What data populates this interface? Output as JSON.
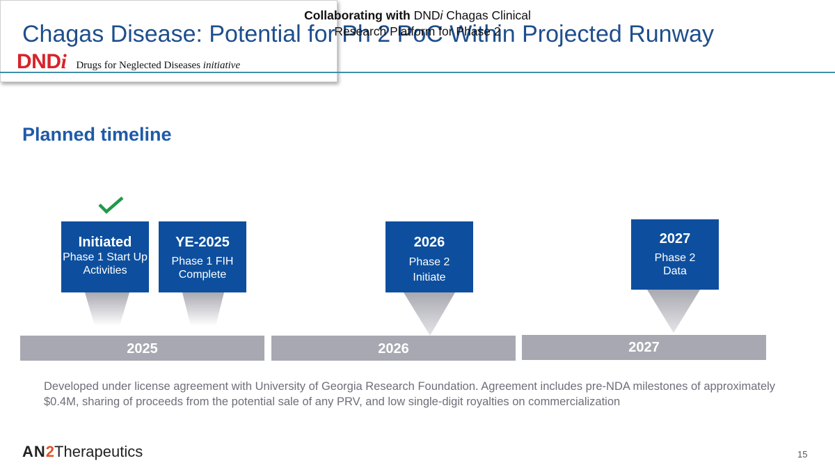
{
  "title": "Chagas Disease: Potential for Ph 2 PoC Within Projected Runway",
  "section_heading": "Planned timeline",
  "collaboration": {
    "bold": "Collaborating with",
    "org": "DND",
    "org_italic": "i",
    "rest_line1": "Chagas Clinical",
    "line2": "Research Platform for Phase 2",
    "logo_text": "DND",
    "logo_italic": "i",
    "logo_tagline": "Drugs for Neglected Diseases",
    "logo_tagline_italic": "initiative"
  },
  "milestones": [
    {
      "heading": "Initiated",
      "body": "Phase 1 Start Up Activities",
      "completed": true
    },
    {
      "heading": "YE-2025",
      "body": "Phase 1 FIH Complete"
    },
    {
      "heading": "2026",
      "body": "Phase 2 Initiate"
    },
    {
      "heading": "2027",
      "body": "Phase 2 Data"
    }
  ],
  "years": [
    "2025",
    "2026",
    "2027"
  ],
  "footnote": "Developed under license agreement with University of Georgia Research Foundation. Agreement includes pre-NDA milestones of approximately $0.4M, sharing of proceeds from the potential sale of any PRV, and low single-digit royalties on commercialization",
  "company": {
    "prefix": "AN",
    "number": "2",
    "suffix": "Therapeutics"
  },
  "page_number": "15",
  "colors": {
    "title": "#1e4e8c",
    "milestone": "#0d4f9e",
    "check": "#1f9a4a",
    "year_bar": "#a8a8b2",
    "dndi_red": "#d8232a"
  },
  "icons": {
    "check": "checkmark-icon"
  }
}
